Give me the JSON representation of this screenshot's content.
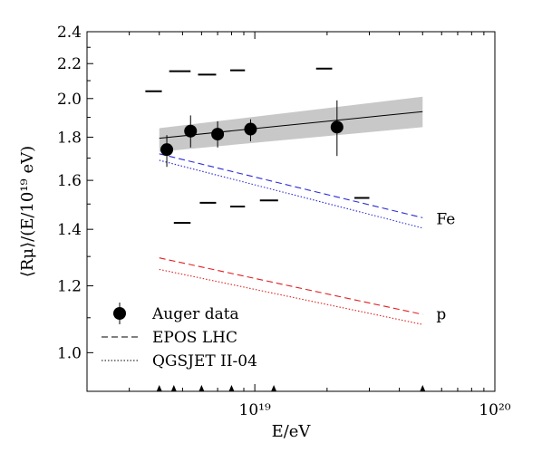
{
  "chart_data": {
    "type": "scatter",
    "xlabel": "E/eV",
    "ylabel": "⟨Rμ⟩/(E/10¹⁹ eV)",
    "x_scale": "log",
    "y_scale": "log",
    "xlim": [
      2e+18,
      1e+20
    ],
    "ylim": [
      0.9,
      2.4
    ],
    "x_ticks": [
      {
        "value": 1e+19,
        "label": "10¹⁹"
      },
      {
        "value": 1e+20,
        "label": "10²⁰"
      }
    ],
    "y_ticks": [
      {
        "value": 1.0,
        "label": "1.0"
      },
      {
        "value": 1.2,
        "label": "1.2"
      },
      {
        "value": 1.4,
        "label": "1.4"
      },
      {
        "value": 1.6,
        "label": "1.6"
      },
      {
        "value": 1.8,
        "label": "1.8"
      },
      {
        "value": 2.0,
        "label": "2.0"
      },
      {
        "value": 2.2,
        "label": "2.2"
      },
      {
        "value": 2.4,
        "label": "2.4"
      }
    ],
    "grid": false,
    "legend_position": "bottom-left",
    "legend": [
      {
        "label": "Auger data",
        "symbol": "marker"
      },
      {
        "label": "EPOS LHC",
        "symbol": "dashed"
      },
      {
        "label": "QGSJET II-04",
        "symbol": "dotted"
      }
    ],
    "auger_data": {
      "name": "Auger data",
      "x": [
        4.3e+18,
        5.4e+18,
        7e+18,
        9.6e+18,
        2.2e+19
      ],
      "y": [
        1.74,
        1.83,
        1.815,
        1.84,
        1.85
      ],
      "y_low": [
        1.66,
        1.75,
        1.75,
        1.78,
        1.71
      ],
      "y_high": [
        1.81,
        1.91,
        1.88,
        1.89,
        1.99
      ]
    },
    "systematic_caps_upper": {
      "x_low": [
        3.5e+18,
        4.4e+18,
        5.8e+18,
        7.9e+18,
        1.8e+19
      ],
      "x_high": [
        4.1e+18,
        5.4e+18,
        6.9e+18,
        9.1e+18,
        2.1e+19
      ],
      "y": [
        2.04,
        2.155,
        2.135,
        2.16,
        2.17
      ]
    },
    "systematic_caps_lower": {
      "x_low": [
        4.6e+18,
        5.9e+18,
        7.9e+18,
        1.05e+19,
        2.6e+19
      ],
      "x_high": [
        5.4e+18,
        6.9e+18,
        9.1e+18,
        1.25e+19,
        3e+19
      ],
      "y": [
        1.425,
        1.505,
        1.49,
        1.515,
        1.525
      ]
    },
    "fit": {
      "x": [
        4e+18,
        5e+19
      ],
      "y": [
        1.795,
        1.93
      ],
      "band_low": [
        1.73,
        1.85
      ],
      "band_high": [
        1.845,
        2.01
      ]
    },
    "models": [
      {
        "tag": "Fe",
        "generator": "EPOS LHC",
        "style": "dashed",
        "color": "#2b2bd6",
        "x": [
          4e+18,
          5e+19
        ],
        "y": [
          1.72,
          1.445
        ]
      },
      {
        "tag": "Fe",
        "generator": "QGSJET II-04",
        "style": "dotted",
        "color": "#2b2bd6",
        "x": [
          4e+18,
          5e+19
        ],
        "y": [
          1.69,
          1.405
        ]
      },
      {
        "tag": "p",
        "generator": "EPOS LHC",
        "style": "dashed",
        "color": "#e02020",
        "x": [
          4e+18,
          5e+19
        ],
        "y": [
          1.295,
          1.11
        ]
      },
      {
        "tag": "p",
        "generator": "QGSJET II-04",
        "style": "dotted",
        "color": "#e02020",
        "x": [
          4e+18,
          5e+19
        ],
        "y": [
          1.255,
          1.08
        ]
      }
    ],
    "series_labels": [
      {
        "text": "Fe",
        "color": "#2b2bd6",
        "x": 5.7e+19,
        "y": 1.42
      },
      {
        "text": "p",
        "color": "#e02020",
        "x": 5.7e+19,
        "y": 1.095
      }
    ],
    "bin_edges": [
      4e+18,
      4.6e+18,
      6e+18,
      8e+18,
      1.2e+19,
      5e+19
    ]
  }
}
